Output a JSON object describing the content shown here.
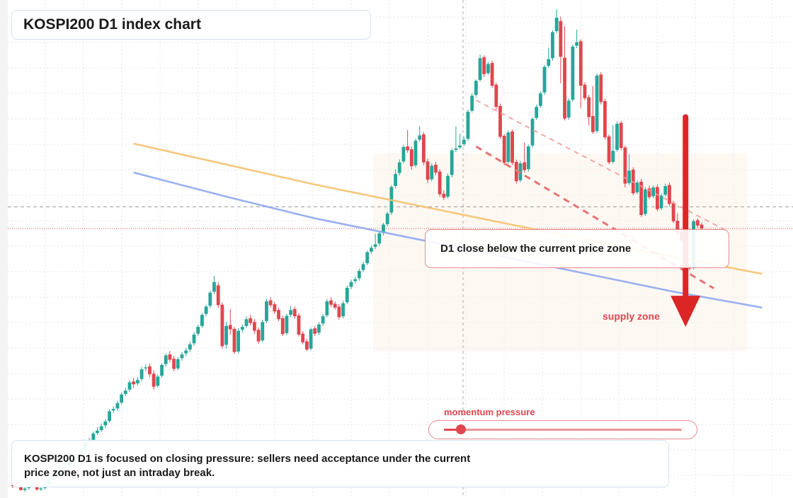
{
  "title": "KOSPI200 D1 index chart",
  "callout": "D1 close below the current price zone",
  "supply_label": "supply zone",
  "momentum": {
    "label": "momentum pressure",
    "level": 0.07
  },
  "summary": "KOSPI200 D1 is focused on closing pressure: sellers need acceptance under the current price zone, not just an intraday break.",
  "colors": {
    "up": "#26a69a",
    "down": "#e0464e",
    "ma_fast": "#f6c16f",
    "ma_slow": "#8fa9ee",
    "arrow": "#dc2626"
  },
  "chart_data": {
    "type": "candlestick",
    "title": "KOSPI200 D1 index chart",
    "ylim": [
      0,
      100
    ],
    "grid": true,
    "current_price": 54.4,
    "reference_level": 58.9,
    "supply_zone": [
      29,
      70
    ],
    "candles": [
      [
        1.2,
        1.0,
        2.0,
        0.6
      ],
      [
        1.5,
        1.2,
        2.3,
        0.8
      ],
      [
        1.2,
        0.2,
        1.5,
        0.0
      ],
      [
        0.2,
        0.5,
        0.9,
        -0.2
      ],
      [
        0.6,
        1.2,
        1.5,
        0.3
      ],
      [
        1.2,
        1.4,
        1.9,
        0.9
      ],
      [
        1.5,
        0.3,
        1.8,
        0.0
      ],
      [
        0.3,
        0.5,
        0.8,
        0.0
      ],
      [
        0.6,
        1.3,
        1.7,
        0.3
      ],
      [
        1.4,
        2.4,
        2.8,
        1.0
      ],
      [
        2.4,
        3.1,
        3.5,
        2.0
      ],
      [
        3.2,
        3.8,
        4.2,
        2.8
      ],
      [
        4.0,
        4.6,
        5.0,
        3.5
      ],
      [
        4.7,
        4.9,
        5.4,
        4.2
      ],
      [
        5.2,
        5.9,
        6.4,
        4.9
      ],
      [
        6.0,
        7.0,
        7.3,
        5.7
      ],
      [
        7.1,
        7.4,
        7.8,
        6.6
      ],
      [
        7.6,
        8.3,
        8.7,
        7.0
      ],
      [
        8.4,
        10.1,
        10.6,
        8.0
      ],
      [
        10.2,
        10.4,
        11.0,
        9.8
      ],
      [
        10.6,
        11.9,
        12.3,
        10.2
      ],
      [
        12.0,
        12.5,
        13.2,
        11.6
      ],
      [
        12.6,
        13.4,
        14.0,
        12.2
      ],
      [
        13.6,
        14.4,
        14.9,
        13.0
      ],
      [
        14.5,
        16.5,
        16.9,
        14.1
      ],
      [
        16.7,
        17.0,
        17.5,
        16.2
      ],
      [
        17.1,
        18.2,
        18.7,
        16.6
      ],
      [
        18.3,
        20.0,
        20.4,
        17.9
      ],
      [
        20.1,
        20.8,
        21.4,
        19.6
      ],
      [
        21.0,
        22.5,
        22.9,
        20.5
      ],
      [
        22.7,
        22.1,
        23.4,
        21.3
      ],
      [
        22.3,
        23.0,
        23.6,
        21.8
      ],
      [
        23.2,
        25.2,
        25.7,
        22.7
      ],
      [
        25.4,
        25.6,
        26.2,
        24.8
      ],
      [
        25.8,
        24.2,
        26.4,
        23.6
      ],
      [
        24.3,
        21.6,
        25.0,
        21.0
      ],
      [
        21.8,
        23.7,
        24.1,
        21.4
      ],
      [
        23.9,
        26.1,
        26.5,
        23.5
      ],
      [
        26.3,
        28.1,
        28.5,
        25.8
      ],
      [
        28.3,
        27.2,
        29.0,
        26.7
      ],
      [
        27.4,
        25.3,
        28.0,
        24.8
      ],
      [
        25.4,
        27.3,
        27.8,
        25.0
      ],
      [
        27.5,
        28.3,
        28.8,
        27.0
      ],
      [
        28.5,
        29.1,
        29.6,
        27.9
      ],
      [
        29.3,
        30.4,
        30.9,
        28.8
      ],
      [
        30.6,
        32.4,
        32.9,
        30.1
      ],
      [
        32.6,
        34.0,
        34.5,
        32.1
      ],
      [
        34.2,
        36.5,
        36.9,
        33.8
      ],
      [
        36.7,
        38.2,
        38.6,
        36.2
      ],
      [
        38.4,
        41.1,
        41.5,
        37.9
      ],
      [
        41.3,
        43.3,
        44.6,
        40.8
      ],
      [
        42.6,
        38.5,
        43.3,
        38.0
      ],
      [
        38.6,
        30.0,
        39.1,
        29.5
      ],
      [
        30.3,
        34.2,
        35.1,
        29.5
      ],
      [
        34.4,
        33.5,
        37.7,
        32.4
      ],
      [
        33.6,
        28.8,
        34.0,
        28.4
      ],
      [
        28.9,
        33.2,
        33.7,
        28.5
      ],
      [
        33.4,
        34.0,
        34.5,
        32.8
      ],
      [
        34.2,
        35.6,
        36.2,
        33.8
      ],
      [
        35.8,
        34.8,
        36.5,
        34.3
      ],
      [
        35.0,
        33.2,
        35.6,
        32.5
      ],
      [
        33.4,
        31.0,
        33.9,
        30.5
      ],
      [
        31.2,
        35.0,
        35.5,
        30.8
      ],
      [
        35.2,
        39.3,
        39.8,
        34.8
      ],
      [
        39.5,
        38.5,
        40.1,
        38.0
      ],
      [
        38.7,
        37.2,
        39.2,
        36.7
      ],
      [
        37.5,
        35.6,
        37.9,
        35.2
      ],
      [
        35.8,
        32.5,
        36.3,
        32.1
      ],
      [
        32.7,
        36.3,
        36.7,
        32.3
      ],
      [
        36.5,
        37.5,
        38.3,
        36.0
      ],
      [
        37.7,
        36.2,
        38.2,
        35.7
      ],
      [
        36.4,
        32.4,
        36.9,
        32.0
      ],
      [
        32.6,
        30.8,
        33.1,
        30.4
      ],
      [
        31.0,
        29.3,
        31.5,
        29.0
      ],
      [
        29.5,
        33.5,
        33.9,
        29.1
      ],
      [
        33.7,
        32.6,
        34.2,
        32.1
      ],
      [
        32.8,
        34.5,
        35.0,
        32.3
      ],
      [
        34.7,
        36.2,
        36.7,
        34.2
      ],
      [
        36.4,
        39.3,
        39.8,
        36.0
      ],
      [
        39.5,
        38.6,
        40.1,
        38.1
      ],
      [
        38.8,
        38.0,
        39.3,
        37.6
      ],
      [
        38.2,
        36.0,
        38.7,
        35.5
      ],
      [
        36.2,
        38.9,
        39.4,
        35.8
      ],
      [
        39.1,
        42.1,
        42.6,
        38.7
      ],
      [
        42.3,
        43.3,
        43.8,
        41.8
      ],
      [
        43.5,
        43.9,
        44.4,
        43.0
      ],
      [
        44.1,
        45.6,
        46.1,
        43.6
      ],
      [
        45.8,
        47.0,
        47.5,
        45.3
      ],
      [
        47.2,
        49.5,
        49.8,
        46.8
      ],
      [
        49.6,
        50.4,
        50.9,
        49.2
      ],
      [
        50.6,
        51.1,
        53.3,
        50.1
      ],
      [
        51.3,
        53.4,
        53.8,
        50.8
      ],
      [
        53.5,
        55.2,
        55.6,
        53.0
      ],
      [
        55.3,
        57.5,
        57.9,
        54.8
      ],
      [
        57.7,
        63.0,
        63.4,
        57.2
      ],
      [
        63.2,
        65.7,
        66.7,
        62.7
      ],
      [
        65.9,
        68.1,
        68.7,
        65.4
      ],
      [
        68.3,
        71.3,
        71.8,
        67.9
      ],
      [
        71.4,
        70.6,
        74.8,
        70.1
      ],
      [
        70.8,
        67.3,
        71.4,
        66.6
      ],
      [
        67.5,
        72.6,
        73.0,
        67.1
      ],
      [
        72.8,
        73.7,
        75.6,
        72.4
      ],
      [
        73.9,
        68.1,
        74.4,
        67.5
      ],
      [
        68.3,
        64.5,
        68.9,
        63.8
      ],
      [
        64.6,
        67.4,
        67.9,
        64.2
      ],
      [
        67.6,
        66.0,
        68.2,
        65.4
      ],
      [
        66.2,
        61.5,
        66.7,
        61.0
      ],
      [
        61.6,
        60.8,
        62.3,
        60.3
      ],
      [
        61.0,
        65.3,
        65.8,
        60.6
      ],
      [
        65.5,
        70.6,
        71.0,
        65.0
      ],
      [
        70.7,
        71.0,
        75.6,
        70.2
      ],
      [
        71.2,
        71.6,
        74.0,
        70.9
      ],
      [
        71.9,
        72.8,
        73.4,
        71.5
      ],
      [
        73.0,
        78.6,
        79.1,
        72.5
      ],
      [
        78.8,
        81.9,
        82.4,
        78.4
      ],
      [
        82.1,
        85.0,
        85.3,
        81.6
      ],
      [
        85.2,
        89.7,
        90.5,
        84.8
      ],
      [
        89.9,
        86.4,
        90.3,
        85.8
      ],
      [
        86.6,
        88.5,
        89.0,
        86.2
      ],
      [
        88.7,
        84.0,
        89.2,
        83.6
      ],
      [
        84.2,
        79.6,
        84.6,
        79.1
      ],
      [
        79.8,
        73.4,
        80.3,
        73.0
      ],
      [
        73.6,
        68.0,
        74.0,
        67.5
      ],
      [
        68.2,
        74.3,
        74.7,
        67.8
      ],
      [
        74.5,
        68.0,
        74.9,
        67.6
      ],
      [
        68.2,
        64.2,
        68.7,
        63.7
      ],
      [
        64.4,
        67.9,
        68.4,
        64.0
      ],
      [
        68.1,
        66.5,
        72.2,
        66.0
      ],
      [
        66.7,
        71.4,
        71.8,
        66.2
      ],
      [
        71.6,
        77.1,
        77.5,
        71.2
      ],
      [
        77.3,
        79.6,
        80.1,
        76.9
      ],
      [
        79.8,
        82.4,
        82.8,
        79.4
      ],
      [
        82.6,
        87.9,
        88.3,
        82.1
      ],
      [
        88.1,
        89.5,
        91.9,
        87.7
      ],
      [
        89.7,
        95.1,
        95.5,
        89.2
      ],
      [
        95.3,
        98.1,
        99.8,
        94.8
      ],
      [
        97.4,
        90.0,
        98.3,
        84.5
      ],
      [
        89.8,
        77.2,
        96.3,
        76.8
      ],
      [
        77.4,
        80.9,
        81.4,
        76.9
      ],
      [
        81.1,
        92.1,
        92.5,
        80.7
      ],
      [
        92.3,
        93.0,
        95.6,
        91.8
      ],
      [
        93.2,
        84.0,
        93.6,
        79.3
      ],
      [
        84.2,
        81.4,
        84.7,
        81.0
      ],
      [
        81.6,
        77.5,
        82.1,
        75.8
      ],
      [
        77.7,
        74.4,
        83.9,
        74.0
      ],
      [
        74.6,
        86.1,
        86.5,
        74.2
      ],
      [
        86.3,
        80.6,
        86.8,
        80.1
      ],
      [
        80.8,
        73.3,
        81.3,
        72.9
      ],
      [
        73.5,
        68.1,
        73.9,
        67.7
      ],
      [
        68.2,
        70.5,
        75.8,
        67.8
      ],
      [
        70.7,
        76.1,
        76.6,
        70.3
      ],
      [
        76.3,
        71.1,
        76.7,
        70.6
      ],
      [
        71.2,
        63.7,
        71.6,
        62.9
      ],
      [
        63.8,
        66.4,
        69.8,
        63.4
      ],
      [
        66.6,
        61.7,
        67.1,
        61.3
      ],
      [
        61.9,
        63.9,
        64.4,
        61.5
      ],
      [
        64.1,
        57.2,
        64.7,
        56.8
      ],
      [
        57.4,
        62.5,
        63.0,
        57.0
      ],
      [
        62.7,
        60.9,
        63.3,
        60.5
      ],
      [
        61.1,
        62.9,
        63.4,
        60.7
      ],
      [
        63.0,
        58.4,
        63.5,
        58.0
      ],
      [
        58.6,
        61.2,
        61.7,
        58.2
      ],
      [
        61.4,
        63.2,
        63.7,
        61.0
      ],
      [
        63.4,
        59.5,
        63.9,
        59.0
      ],
      [
        59.6,
        55.9,
        60.1,
        55.5
      ],
      [
        56.0,
        53.5,
        57.6,
        53.1
      ],
      [
        53.7,
        51.9,
        54.3,
        51.5
      ],
      [
        52.1,
        46.5,
        52.6,
        46.1
      ],
      [
        46.7,
        46.1,
        47.2,
        45.7
      ],
      [
        46.3,
        55.9,
        56.3,
        45.9
      ],
      [
        56.1,
        55.0,
        56.5,
        54.5
      ],
      [
        55.2,
        54.4,
        55.6,
        54.0
      ]
    ],
    "ma_fast": [
      [
        30,
        72
      ],
      [
        75,
        63.5
      ],
      [
        122,
        55.5
      ],
      [
        164,
        48.5
      ],
      [
        186,
        45
      ]
    ],
    "ma_slow": [
      [
        30,
        66
      ],
      [
        53,
        61
      ],
      [
        75,
        56.5
      ],
      [
        98,
        52.6
      ],
      [
        122,
        48.5
      ],
      [
        164,
        41.3
      ],
      [
        186,
        38
      ]
    ],
    "dashed_trend_faint": [
      [
        115,
        81
      ],
      [
        177,
        54
      ]
    ],
    "dashed_trend_strong": [
      [
        115,
        71.4
      ],
      [
        174,
        42
      ]
    ],
    "arrow": {
      "x": 167,
      "from": 77.5,
      "to": 34
    }
  }
}
